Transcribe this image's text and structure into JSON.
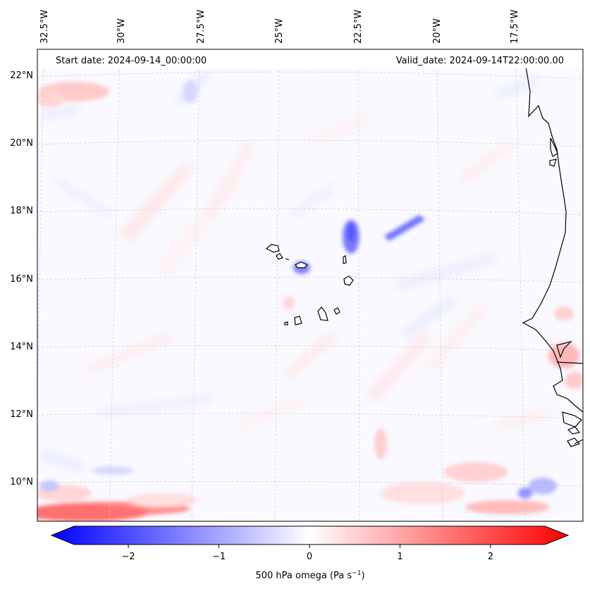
{
  "header": {
    "start_date": "Start date: 2024-09-14_00:00:00",
    "valid_date": "Valid_date: 2024-09-14T22:00:00.00"
  },
  "lon_labels": [
    "32.5°W",
    "30°W",
    "27.5°W",
    "25°W",
    "22.5°W",
    "20°W",
    "17.5°W"
  ],
  "lat_labels": [
    "22°N",
    "20°N",
    "18°N",
    "16°N",
    "14°N",
    "12°N",
    "10°N"
  ],
  "colorbar": {
    "ticks": [
      "−2",
      "−1",
      "0",
      "1",
      "2"
    ],
    "label": "500 hPa omega (Pa s",
    "label_sup": "−1",
    "label_end": ")",
    "vmin": -2.6,
    "vmax": 2.6,
    "min_color": "#0000ff",
    "mid_color": "#ffffff",
    "max_color": "#ff0000"
  },
  "colors": {
    "coastline": "#000000",
    "gridline": "#c8c8c8",
    "background_tint": "#f8f8ff"
  }
}
